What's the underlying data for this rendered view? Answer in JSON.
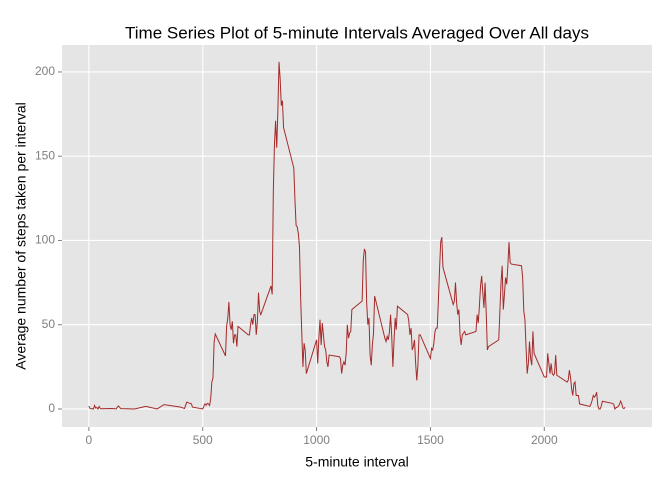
{
  "chart_data": {
    "type": "line",
    "title": "Time Series Plot of 5-minute Intervals Averaged Over All days",
    "x_label": "5-minute interval",
    "y_label": "Average number of steps taken per interval",
    "x": [
      0,
      5,
      10,
      15,
      20,
      25,
      30,
      35,
      40,
      45,
      50,
      55,
      100,
      110,
      120,
      125,
      130,
      140,
      200,
      250,
      300,
      330,
      400,
      420,
      430,
      440,
      450,
      455,
      500,
      505,
      510,
      515,
      520,
      525,
      530,
      535,
      540,
      545,
      550,
      555,
      600,
      605,
      610,
      615,
      620,
      625,
      630,
      635,
      640,
      645,
      650,
      655,
      700,
      705,
      710,
      715,
      720,
      725,
      730,
      735,
      740,
      745,
      750,
      755,
      800,
      805,
      810,
      815,
      820,
      825,
      830,
      835,
      840,
      845,
      850,
      855,
      900,
      905,
      910,
      915,
      920,
      925,
      930,
      935,
      940,
      945,
      950,
      955,
      1000,
      1005,
      1010,
      1015,
      1020,
      1025,
      1030,
      1035,
      1040,
      1045,
      1050,
      1055,
      1100,
      1105,
      1110,
      1115,
      1120,
      1125,
      1130,
      1135,
      1140,
      1145,
      1150,
      1155,
      1200,
      1205,
      1210,
      1215,
      1220,
      1225,
      1230,
      1235,
      1240,
      1245,
      1250,
      1255,
      1300,
      1305,
      1310,
      1315,
      1320,
      1325,
      1330,
      1335,
      1340,
      1345,
      1350,
      1355,
      1400,
      1405,
      1410,
      1415,
      1420,
      1425,
      1430,
      1435,
      1440,
      1445,
      1450,
      1455,
      1500,
      1505,
      1510,
      1515,
      1520,
      1525,
      1530,
      1535,
      1540,
      1545,
      1550,
      1555,
      1600,
      1605,
      1610,
      1615,
      1620,
      1625,
      1630,
      1635,
      1640,
      1645,
      1650,
      1655,
      1700,
      1705,
      1710,
      1715,
      1720,
      1725,
      1730,
      1735,
      1740,
      1745,
      1750,
      1755,
      1800,
      1805,
      1810,
      1815,
      1820,
      1825,
      1830,
      1835,
      1840,
      1845,
      1850,
      1855,
      1900,
      1905,
      1910,
      1915,
      1920,
      1925,
      1930,
      1935,
      1940,
      1945,
      1950,
      1955,
      2000,
      2005,
      2010,
      2015,
      2020,
      2025,
      2030,
      2035,
      2040,
      2045,
      2050,
      2055,
      2100,
      2105,
      2110,
      2115,
      2120,
      2125,
      2130,
      2135,
      2140,
      2145,
      2150,
      2155,
      2200,
      2205,
      2210,
      2215,
      2220,
      2225,
      2230,
      2235,
      2240,
      2245,
      2250,
      2255,
      2300,
      2305,
      2310,
      2315,
      2320,
      2325,
      2330,
      2335,
      2340,
      2345,
      2350,
      2355
    ],
    "series": [
      {
        "name": "steps",
        "color": "#A52A2A",
        "values": [
          1.7,
          0.3,
          0.1,
          0.2,
          0,
          2.1,
          0.5,
          0.9,
          0,
          1.5,
          0.3,
          0.1,
          0.3,
          0.2,
          0,
          1.1,
          1.8,
          0.2,
          0,
          1.5,
          0,
          2.6,
          1.2,
          0.3,
          4.1,
          3.5,
          3.1,
          1.1,
          0,
          1.6,
          3,
          2.2,
          3.3,
          3,
          2.1,
          6,
          16,
          18.3,
          39.5,
          44.5,
          31.5,
          49.3,
          53.8,
          63.5,
          50,
          47,
          52,
          39,
          44,
          44,
          37,
          49,
          44,
          44,
          50,
          54,
          50,
          56,
          56,
          44,
          52,
          69,
          58,
          56,
          73,
          68,
          129,
          157,
          171,
          155,
          177,
          206,
          196,
          180,
          183,
          167,
          143,
          124,
          109,
          108,
          104,
          96,
          66,
          45,
          25,
          39,
          35,
          21,
          41,
          27,
          42,
          53,
          38,
          51,
          44,
          37,
          35,
          28,
          25,
          32,
          31,
          30,
          21,
          26,
          28,
          26,
          33,
          50,
          42,
          45,
          46,
          59,
          64,
          88,
          95,
          93,
          63,
          50,
          54,
          32,
          26,
          38,
          45,
          67,
          42,
          40,
          43,
          41,
          46,
          56,
          43,
          25,
          40,
          54,
          47,
          61,
          56,
          52,
          44,
          48,
          35,
          37,
          41,
          27,
          17,
          26,
          44,
          44,
          30,
          36,
          35,
          39,
          46,
          48,
          48,
          65,
          83,
          99,
          102,
          84,
          62,
          64,
          75,
          63,
          56,
          59,
          44,
          38,
          44,
          45,
          46,
          44,
          46,
          56,
          51,
          61,
          73,
          79,
          69,
          60,
          75,
          57,
          35,
          37,
          41,
          58,
          75,
          85,
          59,
          68,
          78,
          74,
          85,
          99,
          87,
          86,
          85,
          78,
          58,
          53,
          36,
          21,
          27,
          40,
          30,
          26,
          46,
          33,
          19,
          19,
          19,
          33,
          27,
          21,
          27,
          21,
          20,
          21,
          32,
          20,
          16,
          17,
          23,
          19,
          12,
          8,
          15,
          16,
          8,
          8,
          8,
          3,
          1.5,
          3,
          5,
          8,
          7,
          8,
          10,
          2,
          0,
          0,
          1.6,
          4.6,
          3.3,
          2.8,
          0,
          0.8,
          1,
          1.6,
          2.6,
          4.7,
          3.3,
          0.6,
          0.2,
          1.1
        ]
      }
    ],
    "xlim": [
      -118,
      2473
    ],
    "xticks": [
      0,
      500,
      1000,
      1500,
      2000
    ],
    "ylim": [
      -10.7,
      216
    ],
    "yticks": [
      0,
      50,
      100,
      150,
      200
    ],
    "grid": true
  }
}
